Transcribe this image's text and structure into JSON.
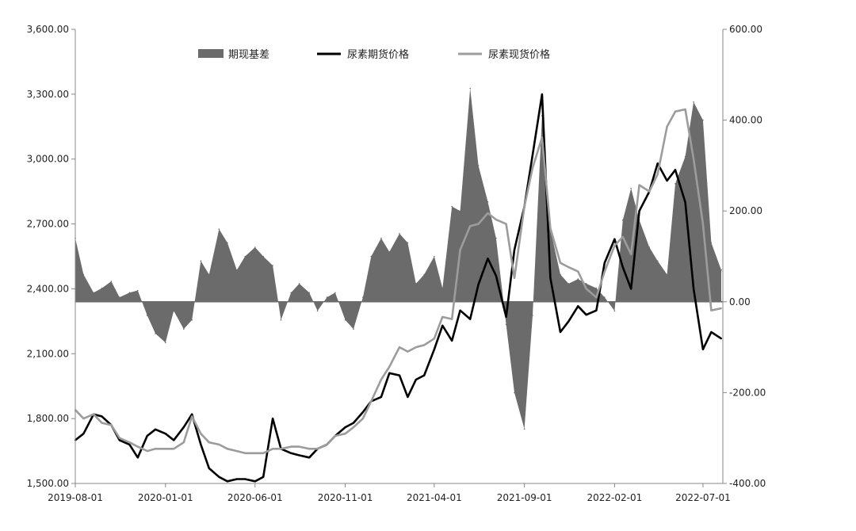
{
  "chart_data": {
    "type": "line",
    "title": "",
    "xlabel": "",
    "ylabel": "",
    "x_ticks": [
      "2019-08-01",
      "2020-01-01",
      "2020-06-01",
      "2020-11-01",
      "2021-04-01",
      "2021-09-01",
      "2022-02-01",
      "2022-07-01"
    ],
    "y_left": {
      "min": 1500,
      "max": 3600,
      "ticks": [
        "1,500.00",
        "1,800.00",
        "2,100.00",
        "2,400.00",
        "2,700.00",
        "3,000.00",
        "3,300.00",
        "3,600.00"
      ]
    },
    "y_right": {
      "min": -400,
      "max": 600,
      "ticks": [
        "-400.00",
        "-200.00",
        "0.00",
        "200.00",
        "400.00",
        "600.00"
      ]
    },
    "legend": {
      "position": "top-center"
    },
    "colors": {
      "basis": "#6b6b6b",
      "futures": "#000000",
      "spot": "#9c9c9c"
    },
    "series": [
      {
        "name": "期现基差",
        "kind": "area",
        "axis": "right",
        "x": [
          "2019-08-01",
          "2019-08-15",
          "2019-09-01",
          "2019-09-15",
          "2019-10-01",
          "2019-10-15",
          "2019-11-01",
          "2019-11-15",
          "2019-12-01",
          "2019-12-15",
          "2020-01-01",
          "2020-01-15",
          "2020-02-01",
          "2020-02-15",
          "2020-03-01",
          "2020-03-15",
          "2020-04-01",
          "2020-04-15",
          "2020-05-01",
          "2020-05-15",
          "2020-06-01",
          "2020-06-15",
          "2020-07-01",
          "2020-07-15",
          "2020-08-01",
          "2020-08-15",
          "2020-09-01",
          "2020-09-15",
          "2020-10-01",
          "2020-10-15",
          "2020-11-01",
          "2020-11-15",
          "2020-12-01",
          "2020-12-15",
          "2021-01-01",
          "2021-01-15",
          "2021-02-01",
          "2021-02-15",
          "2021-03-01",
          "2021-03-15",
          "2021-04-01",
          "2021-04-15",
          "2021-05-01",
          "2021-05-15",
          "2021-06-01",
          "2021-06-15",
          "2021-07-01",
          "2021-07-15",
          "2021-08-01",
          "2021-08-15",
          "2021-09-01",
          "2021-09-15",
          "2021-10-01",
          "2021-10-15",
          "2021-11-01",
          "2021-11-15",
          "2021-12-01",
          "2021-12-15",
          "2022-01-01",
          "2022-01-15",
          "2022-02-01",
          "2022-02-15",
          "2022-03-01",
          "2022-03-15",
          "2022-04-01",
          "2022-04-15",
          "2022-05-01",
          "2022-05-15",
          "2022-06-01",
          "2022-06-15",
          "2022-07-01",
          "2022-07-15",
          "2022-08-01"
        ],
        "values": [
          140,
          60,
          20,
          30,
          45,
          10,
          20,
          25,
          -30,
          -70,
          -90,
          -20,
          -60,
          -40,
          90,
          60,
          160,
          130,
          70,
          100,
          120,
          100,
          80,
          -40,
          20,
          40,
          20,
          -20,
          10,
          20,
          -40,
          -60,
          10,
          100,
          140,
          110,
          150,
          130,
          40,
          60,
          100,
          30,
          210,
          200,
          470,
          300,
          220,
          140,
          -50,
          -200,
          -280,
          -30,
          410,
          160,
          60,
          40,
          50,
          40,
          30,
          10,
          -20,
          180,
          250,
          180,
          120,
          90,
          60,
          260,
          320,
          440,
          400,
          130,
          70
        ]
      },
      {
        "name": "尿素期货价格",
        "kind": "line",
        "axis": "left",
        "x": [
          "2019-08-01",
          "2019-08-15",
          "2019-09-01",
          "2019-09-15",
          "2019-10-01",
          "2019-10-15",
          "2019-11-01",
          "2019-11-15",
          "2019-12-01",
          "2019-12-15",
          "2020-01-01",
          "2020-01-15",
          "2020-02-01",
          "2020-02-15",
          "2020-03-01",
          "2020-03-15",
          "2020-04-01",
          "2020-04-15",
          "2020-05-01",
          "2020-05-15",
          "2020-06-01",
          "2020-06-15",
          "2020-07-01",
          "2020-07-15",
          "2020-08-01",
          "2020-08-15",
          "2020-09-01",
          "2020-09-15",
          "2020-10-01",
          "2020-10-15",
          "2020-11-01",
          "2020-11-15",
          "2020-12-01",
          "2020-12-15",
          "2021-01-01",
          "2021-01-15",
          "2021-02-01",
          "2021-02-15",
          "2021-03-01",
          "2021-03-15",
          "2021-04-01",
          "2021-04-15",
          "2021-05-01",
          "2021-05-15",
          "2021-06-01",
          "2021-06-15",
          "2021-07-01",
          "2021-07-15",
          "2021-08-01",
          "2021-08-15",
          "2021-09-01",
          "2021-09-15",
          "2021-10-01",
          "2021-10-15",
          "2021-11-01",
          "2021-11-15",
          "2021-12-01",
          "2021-12-15",
          "2022-01-01",
          "2022-01-15",
          "2022-02-01",
          "2022-02-15",
          "2022-03-01",
          "2022-03-15",
          "2022-04-01",
          "2022-04-15",
          "2022-05-01",
          "2022-05-15",
          "2022-06-01",
          "2022-06-15",
          "2022-07-01",
          "2022-07-15",
          "2022-08-01"
        ],
        "values": [
          1700,
          1730,
          1820,
          1810,
          1770,
          1700,
          1680,
          1620,
          1720,
          1750,
          1730,
          1700,
          1760,
          1820,
          1680,
          1570,
          1530,
          1510,
          1520,
          1520,
          1510,
          1530,
          1800,
          1660,
          1640,
          1630,
          1620,
          1660,
          1680,
          1720,
          1760,
          1780,
          1830,
          1880,
          1900,
          2010,
          2000,
          1900,
          1980,
          2000,
          2120,
          2230,
          2160,
          2300,
          2260,
          2420,
          2540,
          2460,
          2270,
          2580,
          2780,
          3020,
          3300,
          2450,
          2200,
          2250,
          2320,
          2280,
          2300,
          2520,
          2630,
          2500,
          2400,
          2760,
          2850,
          2980,
          2900,
          2950,
          2800,
          2400,
          2120,
          2200,
          2170
        ]
      },
      {
        "name": "尿素现货价格",
        "kind": "line",
        "axis": "left",
        "x": [
          "2019-08-01",
          "2019-08-15",
          "2019-09-01",
          "2019-09-15",
          "2019-10-01",
          "2019-10-15",
          "2019-11-01",
          "2019-11-15",
          "2019-12-01",
          "2019-12-15",
          "2020-01-01",
          "2020-01-15",
          "2020-02-01",
          "2020-02-15",
          "2020-03-01",
          "2020-03-15",
          "2020-04-01",
          "2020-04-15",
          "2020-05-01",
          "2020-05-15",
          "2020-06-01",
          "2020-06-15",
          "2020-07-01",
          "2020-07-15",
          "2020-08-01",
          "2020-08-15",
          "2020-09-01",
          "2020-09-15",
          "2020-10-01",
          "2020-10-15",
          "2020-11-01",
          "2020-11-15",
          "2020-12-01",
          "2020-12-15",
          "2021-01-01",
          "2021-01-15",
          "2021-02-01",
          "2021-02-15",
          "2021-03-01",
          "2021-03-15",
          "2021-04-01",
          "2021-04-15",
          "2021-05-01",
          "2021-05-15",
          "2021-06-01",
          "2021-06-15",
          "2021-07-01",
          "2021-07-15",
          "2021-08-01",
          "2021-08-15",
          "2021-09-01",
          "2021-09-15",
          "2021-10-01",
          "2021-10-15",
          "2021-11-01",
          "2021-11-15",
          "2021-12-01",
          "2021-12-15",
          "2022-01-01",
          "2022-01-15",
          "2022-02-01",
          "2022-02-15",
          "2022-03-01",
          "2022-03-15",
          "2022-04-01",
          "2022-04-15",
          "2022-05-01",
          "2022-05-15",
          "2022-06-01",
          "2022-06-15",
          "2022-07-01",
          "2022-07-15",
          "2022-08-01"
        ],
        "values": [
          1840,
          1800,
          1820,
          1780,
          1770,
          1710,
          1690,
          1670,
          1650,
          1660,
          1660,
          1660,
          1690,
          1810,
          1730,
          1690,
          1680,
          1660,
          1650,
          1640,
          1640,
          1640,
          1660,
          1660,
          1670,
          1670,
          1660,
          1660,
          1680,
          1720,
          1730,
          1760,
          1800,
          1880,
          1980,
          2040,
          2130,
          2110,
          2130,
          2140,
          2170,
          2270,
          2260,
          2580,
          2690,
          2700,
          2750,
          2720,
          2700,
          2450,
          2780,
          2960,
          3100,
          2680,
          2520,
          2500,
          2480,
          2400,
          2360,
          2480,
          2600,
          2640,
          2560,
          2880,
          2850,
          2930,
          3150,
          3220,
          3230,
          3000,
          2700,
          2300,
          2310
        ]
      }
    ]
  }
}
